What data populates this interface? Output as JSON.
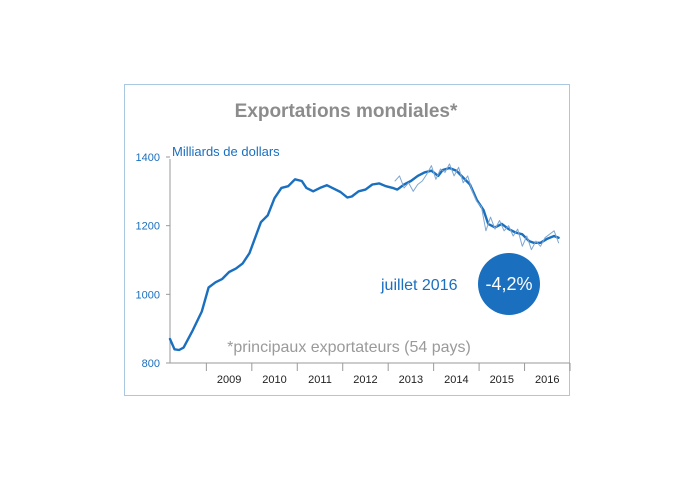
{
  "chart_data": {
    "type": "line",
    "title": "Exportations mondiales*",
    "ylabel": "Milliards de dollars",
    "ylim": [
      800,
      1400
    ],
    "yticks": [
      "1400",
      "1200",
      "1000",
      "800"
    ],
    "categories": [
      "2009",
      "2010",
      "2011",
      "2012",
      "2013",
      "2014",
      "2015",
      "2016"
    ],
    "footnote": "*principaux exportateurs (54 pays)",
    "callout": {
      "label": "juillet 2016",
      "value": "-4,2%"
    },
    "series": [
      {
        "style": "smoothed",
        "color": "#1a6fbf",
        "x": [
          2008.0,
          2008.1,
          2008.2,
          2008.3,
          2008.5,
          2008.7,
          2008.85,
          2009.0,
          2009.15,
          2009.3,
          2009.45,
          2009.6,
          2009.75,
          2009.9,
          2010.0,
          2010.15,
          2010.3,
          2010.45,
          2010.6,
          2010.75,
          2010.9,
          2011.0,
          2011.15,
          2011.3,
          2011.45,
          2011.6,
          2011.75,
          2011.9,
          2012.0,
          2012.15,
          2012.3,
          2012.45,
          2012.6,
          2012.75,
          2012.9,
          2013.0,
          2013.15,
          2013.3,
          2013.45,
          2013.6,
          2013.75,
          2013.9,
          2014.0,
          2014.15,
          2014.3,
          2014.45,
          2014.6,
          2014.75,
          2014.9,
          2015.0,
          2015.15,
          2015.3,
          2015.45,
          2015.6,
          2015.75,
          2015.9,
          2016.0,
          2016.15,
          2016.3,
          2016.45,
          2016.55
        ],
        "values": [
          870,
          840,
          838,
          845,
          895,
          950,
          1020,
          1035,
          1045,
          1065,
          1075,
          1090,
          1120,
          1175,
          1210,
          1230,
          1280,
          1310,
          1315,
          1335,
          1330,
          1310,
          1300,
          1310,
          1318,
          1308,
          1298,
          1282,
          1285,
          1300,
          1305,
          1320,
          1323,
          1315,
          1310,
          1305,
          1320,
          1330,
          1345,
          1355,
          1360,
          1345,
          1362,
          1368,
          1360,
          1340,
          1320,
          1275,
          1245,
          1205,
          1195,
          1205,
          1190,
          1180,
          1175,
          1155,
          1150,
          1150,
          1162,
          1170,
          1165
        ]
      },
      {
        "style": "monthly",
        "color": "#7fa6cf",
        "x": [
          2012.95,
          2013.05,
          2013.15,
          2013.25,
          2013.35,
          2013.45,
          2013.55,
          2013.65,
          2013.75,
          2013.85,
          2013.95,
          2014.05,
          2014.15,
          2014.25,
          2014.35,
          2014.45,
          2014.55,
          2014.65,
          2014.75,
          2014.85,
          2014.95,
          2015.05,
          2015.15,
          2015.25,
          2015.35,
          2015.45,
          2015.55,
          2015.65,
          2015.75,
          2015.85,
          2015.95,
          2016.05,
          2016.15,
          2016.25,
          2016.35,
          2016.45,
          2016.55
        ],
        "values": [
          1330,
          1345,
          1310,
          1325,
          1300,
          1320,
          1330,
          1350,
          1375,
          1335,
          1365,
          1355,
          1380,
          1345,
          1370,
          1325,
          1345,
          1300,
          1270,
          1255,
          1185,
          1225,
          1190,
          1215,
          1185,
          1200,
          1170,
          1190,
          1140,
          1170,
          1130,
          1155,
          1140,
          1165,
          1175,
          1185,
          1150
        ]
      }
    ]
  }
}
